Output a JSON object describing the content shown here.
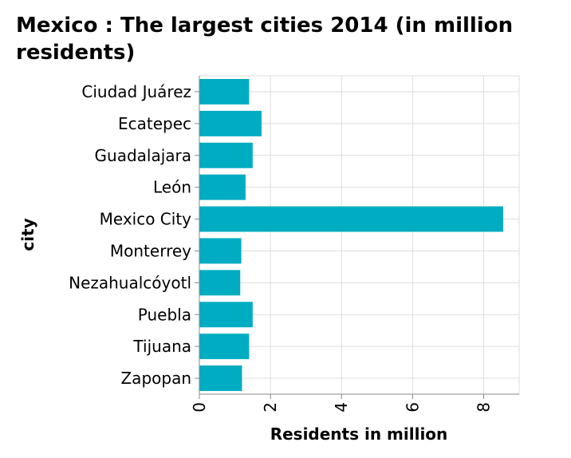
{
  "chart_data": {
    "type": "bar",
    "orientation": "horizontal",
    "title_line1": "Mexico : The largest cities 2014 (in million",
    "title_line2": "residents)",
    "xlabel": "Residents in million",
    "ylabel": "city",
    "xlim": [
      0,
      9
    ],
    "xticks": [
      0,
      2,
      4,
      6,
      8
    ],
    "grid": true,
    "bar_color": "#00acc1",
    "categories": [
      "Ciudad Juárez",
      "Ecatepec",
      "Guadalajara",
      "León",
      "Mexico City",
      "Monterrey",
      "Nezahualcóyotl",
      "Puebla",
      "Tijuana",
      "Zapopan"
    ],
    "values": [
      1.4,
      1.75,
      1.5,
      1.3,
      8.55,
      1.18,
      1.15,
      1.5,
      1.4,
      1.2
    ]
  }
}
